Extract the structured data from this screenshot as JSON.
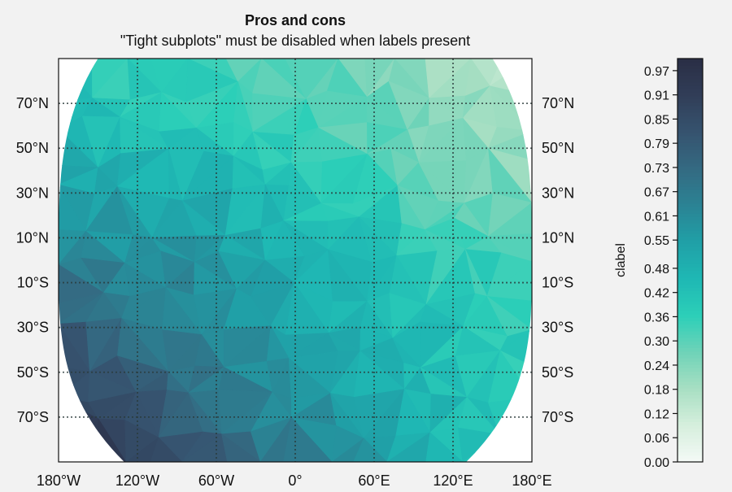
{
  "chart_data": {
    "type": "heatmap",
    "projection": "plate-carree",
    "title": "Pros and cons",
    "subtitle": "\"Tight subplots\" must be disabled when labels present",
    "x_ticks": [
      "180°W",
      "120°W",
      "60°W",
      "0°",
      "60°E",
      "120°E",
      "180°E"
    ],
    "y_ticks": [
      "70°N",
      "50°N",
      "30°N",
      "10°N",
      "10°S",
      "30°S",
      "50°S",
      "70°S"
    ],
    "x_tick_values": [
      -180,
      -120,
      -60,
      0,
      60,
      120,
      180
    ],
    "y_tick_values": [
      70,
      50,
      30,
      10,
      -10,
      -30,
      -50,
      -70
    ],
    "xlim": [
      -180,
      180
    ],
    "ylim": [
      -90,
      90
    ],
    "grid": true,
    "colorbar": {
      "label": "clabel",
      "vmin": 0.0,
      "vmax": 1.0,
      "ticks": [
        "0.00",
        "0.06",
        "0.12",
        "0.18",
        "0.24",
        "0.30",
        "0.36",
        "0.42",
        "0.48",
        "0.55",
        "0.61",
        "0.67",
        "0.73",
        "0.79",
        "0.85",
        "0.91",
        "0.97"
      ],
      "tick_values": [
        0.0,
        0.06,
        0.12,
        0.18,
        0.24,
        0.3,
        0.36,
        0.42,
        0.48,
        0.55,
        0.61,
        0.67,
        0.73,
        0.79,
        0.85,
        0.91,
        0.97
      ],
      "colors": [
        "#f4faf6",
        "#d6efdd",
        "#a8dfc3",
        "#6fd3b8",
        "#2ccfb8",
        "#1fb8b4",
        "#20a0a7",
        "#2b8394",
        "#346a82",
        "#36536f",
        "#313e58",
        "#2a2e45"
      ]
    },
    "field_samples": [
      {
        "lon": -180,
        "lat": 90,
        "value": 0.4
      },
      {
        "lon": -120,
        "lat": 90,
        "value": 0.34
      },
      {
        "lon": -60,
        "lat": 90,
        "value": 0.33
      },
      {
        "lon": 0,
        "lat": 90,
        "value": 0.3
      },
      {
        "lon": 60,
        "lat": 90,
        "value": 0.24
      },
      {
        "lon": 120,
        "lat": 90,
        "value": 0.2
      },
      {
        "lon": 180,
        "lat": 90,
        "value": 0.16
      },
      {
        "lon": -180,
        "lat": 45,
        "value": 0.5
      },
      {
        "lon": -120,
        "lat": 45,
        "value": 0.45
      },
      {
        "lon": -60,
        "lat": 45,
        "value": 0.43
      },
      {
        "lon": 0,
        "lat": 45,
        "value": 0.37
      },
      {
        "lon": 60,
        "lat": 45,
        "value": 0.33
      },
      {
        "lon": 120,
        "lat": 45,
        "value": 0.25
      },
      {
        "lon": 180,
        "lat": 45,
        "value": 0.22
      },
      {
        "lon": -180,
        "lat": 0,
        "value": 0.65
      },
      {
        "lon": -120,
        "lat": 0,
        "value": 0.6
      },
      {
        "lon": -60,
        "lat": 0,
        "value": 0.57
      },
      {
        "lon": 0,
        "lat": 0,
        "value": 0.48
      },
      {
        "lon": 60,
        "lat": 0,
        "value": 0.42
      },
      {
        "lon": 120,
        "lat": 0,
        "value": 0.36
      },
      {
        "lon": 180,
        "lat": 0,
        "value": 0.33
      },
      {
        "lon": -180,
        "lat": -45,
        "value": 0.85
      },
      {
        "lon": -120,
        "lat": -45,
        "value": 0.74
      },
      {
        "lon": -60,
        "lat": -45,
        "value": 0.64
      },
      {
        "lon": 0,
        "lat": -45,
        "value": 0.55
      },
      {
        "lon": 60,
        "lat": -45,
        "value": 0.48
      },
      {
        "lon": 120,
        "lat": -45,
        "value": 0.42
      },
      {
        "lon": 180,
        "lat": -45,
        "value": 0.37
      },
      {
        "lon": -180,
        "lat": -90,
        "value": 0.95
      },
      {
        "lon": -120,
        "lat": -90,
        "value": 0.92
      },
      {
        "lon": -60,
        "lat": -90,
        "value": 0.78
      },
      {
        "lon": 0,
        "lat": -90,
        "value": 0.66
      },
      {
        "lon": 60,
        "lat": -90,
        "value": 0.55
      },
      {
        "lon": 120,
        "lat": -90,
        "value": 0.46
      },
      {
        "lon": 180,
        "lat": -90,
        "value": 0.4
      }
    ]
  }
}
